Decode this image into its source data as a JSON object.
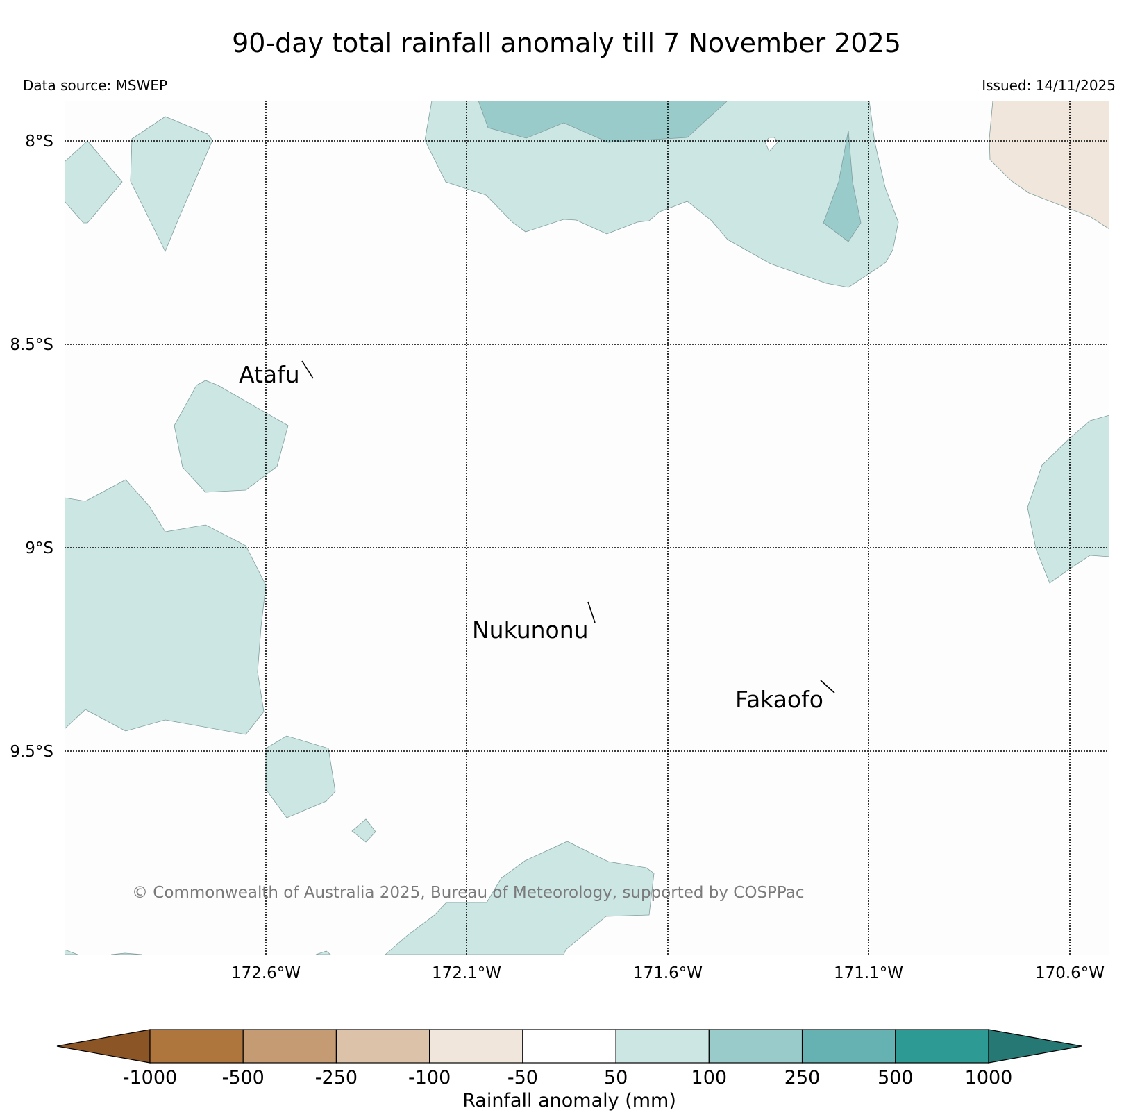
{
  "header": {
    "title": "90-day total rainfall anomaly till 7 November 2025",
    "data_source": "Data source: MSWEP",
    "issued": "Issued: 14/11/2025"
  },
  "map": {
    "lat_labels": [
      "8°S",
      "8.5°S",
      "9°S",
      "9.5°S"
    ],
    "lon_labels": [
      "172.6°W",
      "172.1°W",
      "171.6°W",
      "171.1°W",
      "170.6°W"
    ],
    "places": [
      "Atafu",
      "Nukunonu",
      "Fakaofo"
    ],
    "copyright": "© Commonwealth of Australia 2025, Bureau of Meteorology, supported by COSPPac",
    "fill_colors": {
      "light_teal": "#cce6e4",
      "mid_teal": "#9acbcb",
      "light_brown": "#f1e6dc",
      "background": "#fdfdfd"
    }
  },
  "colorbar": {
    "label": "Rainfall anomaly (mm)",
    "ticks": [
      "-1000",
      "-500",
      "-250",
      "-100",
      "-50",
      "50",
      "100",
      "250",
      "500",
      "1000"
    ],
    "colors": [
      "#8b5526",
      "#ae753d",
      "#c49b72",
      "#dbc2a8",
      "#f1e6dc",
      "#ffffff",
      "#cce6e4",
      "#9acbcb",
      "#66b2b2",
      "#2e9a94",
      "#267874"
    ]
  }
}
